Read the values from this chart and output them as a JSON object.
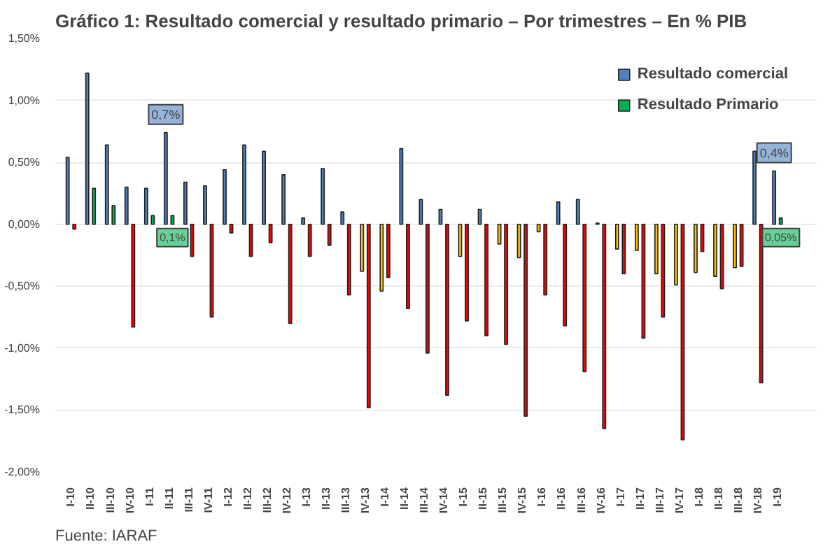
{
  "chart_data": {
    "type": "bar",
    "title": "Gráfico 1: Resultado comercial y resultado primario – Por trimestres – En % PIB",
    "categories": [
      "I-10",
      "II-10",
      "III-10",
      "IV-10",
      "I-11",
      "II-11",
      "III-11",
      "IV-11",
      "I-12",
      "II-12",
      "III-12",
      "IV-12",
      "I-13",
      "II-13",
      "III-13",
      "IV-13",
      "I-14",
      "II-14",
      "III-14",
      "IV-14",
      "I-15",
      "II-15",
      "III-15",
      "IV-15",
      "I-16",
      "II-16",
      "III-16",
      "IV-16",
      "I-17",
      "II-17",
      "III-17",
      "IV-17",
      "I-18",
      "II-18",
      "III-18",
      "IV-18",
      "I-19"
    ],
    "series": [
      {
        "name": "Resultado comercial",
        "color": "#4f81bd",
        "colors": [
          "#4f81bd",
          "#4f81bd",
          "#4f81bd",
          "#4f81bd",
          "#4f81bd",
          "#4f81bd",
          "#4f81bd",
          "#4f81bd",
          "#4f81bd",
          "#4f81bd",
          "#4f81bd",
          "#4f81bd",
          "#4f81bd",
          "#4f81bd",
          "#4f81bd",
          "#ffc000",
          "#ffc000",
          "#4f81bd",
          "#4f81bd",
          "#4f81bd",
          "#ffc000",
          "#4f81bd",
          "#ffc000",
          "#ffc000",
          "#ffc000",
          "#4f81bd",
          "#4f81bd",
          "#4f81bd",
          "#ffc000",
          "#ffc000",
          "#ffc000",
          "#ffc000",
          "#ffc000",
          "#ffc000",
          "#ffc000",
          "#4f81bd",
          "#4f81bd"
        ],
        "values": [
          0.54,
          1.22,
          0.64,
          0.3,
          0.29,
          0.74,
          0.34,
          0.31,
          0.44,
          0.64,
          0.59,
          0.4,
          0.05,
          0.45,
          0.1,
          -0.38,
          -0.54,
          0.61,
          0.2,
          0.12,
          -0.26,
          0.12,
          -0.16,
          -0.27,
          -0.06,
          0.18,
          0.2,
          0.01,
          -0.2,
          -0.21,
          -0.4,
          -0.49,
          -0.39,
          -0.42,
          -0.35,
          0.59,
          0.43
        ],
        "value_labels": [
          null,
          null,
          null,
          null,
          null,
          "0,7%",
          null,
          null,
          null,
          null,
          null,
          null,
          null,
          null,
          null,
          null,
          null,
          null,
          null,
          null,
          null,
          null,
          null,
          null,
          null,
          null,
          null,
          null,
          null,
          null,
          null,
          null,
          null,
          null,
          null,
          null,
          "0,4%"
        ]
      },
      {
        "name": "Resultado Primario",
        "color": "#00b050",
        "colors": [
          "#ff0000",
          "#00b050",
          "#00b050",
          "#ff0000",
          "#00b050",
          "#00b050",
          "#ff0000",
          "#ff0000",
          "#ff0000",
          "#ff0000",
          "#ff0000",
          "#ff0000",
          "#ff0000",
          "#ff0000",
          "#ff0000",
          "#ff0000",
          "#ff0000",
          "#ff0000",
          "#ff0000",
          "#ff0000",
          "#ff0000",
          "#ff0000",
          "#ff0000",
          "#ff0000",
          "#ff0000",
          "#ff0000",
          "#ff0000",
          "#ff0000",
          "#ff0000",
          "#ff0000",
          "#ff0000",
          "#ff0000",
          "#ff0000",
          "#ff0000",
          "#ff0000",
          "#ff0000",
          "#00b050"
        ],
        "values": [
          -0.04,
          0.29,
          0.15,
          -0.83,
          0.07,
          0.07,
          -0.26,
          -0.75,
          -0.07,
          -0.26,
          -0.15,
          -0.8,
          -0.26,
          -0.17,
          -0.57,
          -1.48,
          -0.43,
          -0.68,
          -1.04,
          -1.38,
          -0.78,
          -0.9,
          -0.97,
          -1.55,
          -0.57,
          -0.82,
          -1.19,
          -1.65,
          -0.4,
          -0.92,
          -0.75,
          -1.74,
          -0.22,
          -0.52,
          -0.34,
          -1.28,
          0.05
        ],
        "value_labels": [
          null,
          null,
          null,
          null,
          null,
          "0,1%",
          null,
          null,
          null,
          null,
          null,
          null,
          null,
          null,
          null,
          null,
          null,
          null,
          null,
          null,
          null,
          null,
          null,
          null,
          null,
          null,
          null,
          null,
          null,
          null,
          null,
          null,
          null,
          null,
          null,
          null,
          "0,05%"
        ]
      }
    ],
    "ylim": [
      -2.0,
      1.5
    ],
    "yticks": [
      {
        "value": -2.0,
        "label": "-2,00%"
      },
      {
        "value": -1.5,
        "label": "-1,50%"
      },
      {
        "value": -1.0,
        "label": "-1,00%"
      },
      {
        "value": -0.5,
        "label": "-0,50%"
      },
      {
        "value": 0,
        "label": "0,00%"
      },
      {
        "value": 0.5,
        "label": "0,50%"
      },
      {
        "value": 1.0,
        "label": "1,00%"
      },
      {
        "value": 1.5,
        "label": "1,50%"
      }
    ],
    "grid": "y",
    "legend": "top right",
    "annotations": [
      "Fuente: IARAF"
    ]
  }
}
